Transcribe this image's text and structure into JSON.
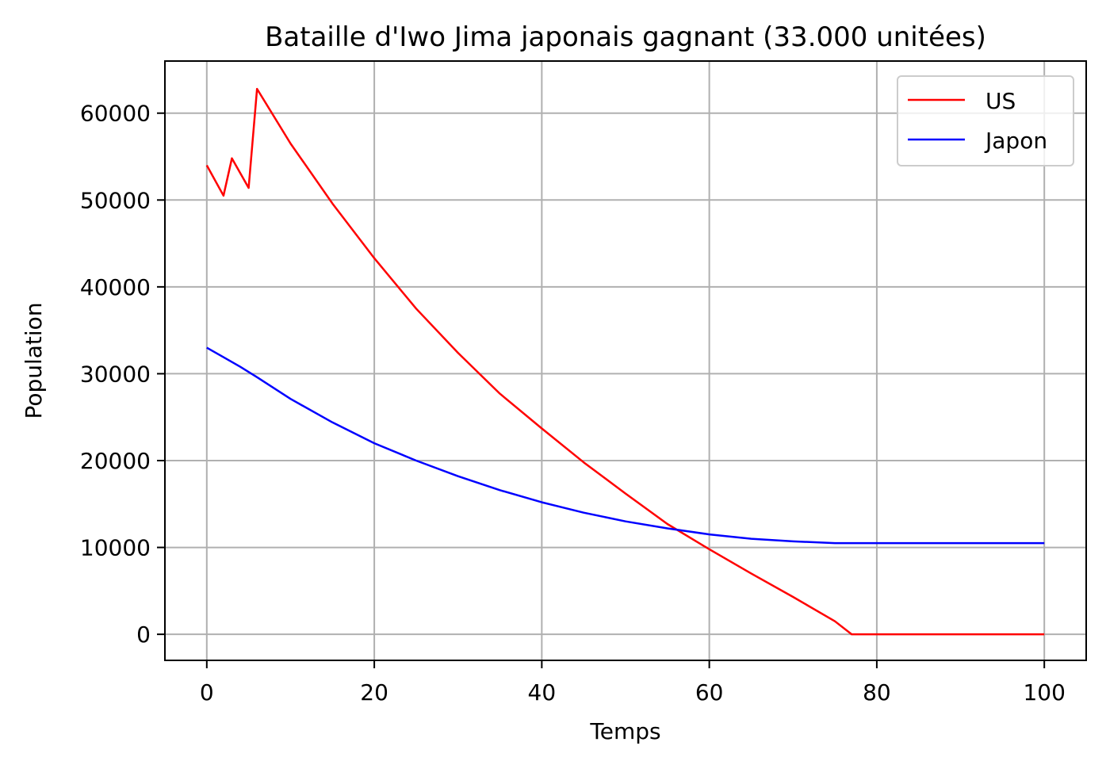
{
  "chart_data": {
    "type": "line",
    "title": "Bataille d'Iwo Jima japonais gagnant (33.000 unitées)",
    "xlabel": "Temps",
    "ylabel": "Population",
    "xlim": [
      -5,
      105
    ],
    "ylim": [
      -3000,
      66000
    ],
    "xticks": [
      0,
      20,
      40,
      60,
      80,
      100
    ],
    "yticks": [
      0,
      10000,
      20000,
      30000,
      40000,
      50000,
      60000
    ],
    "xtick_labels": [
      "0",
      "20",
      "40",
      "60",
      "80",
      "100"
    ],
    "ytick_labels": [
      "0",
      "10000",
      "20000",
      "30000",
      "40000",
      "50000",
      "60000"
    ],
    "grid": true,
    "legend_position": "top-right",
    "series": [
      {
        "name": "US",
        "color": "#ff0000",
        "x": [
          0,
          2,
          3,
          5,
          6,
          10,
          15,
          20,
          25,
          30,
          35,
          40,
          45,
          50,
          55,
          60,
          65,
          70,
          75,
          77,
          80,
          85,
          90,
          95,
          100
        ],
        "y": [
          54000,
          50500,
          54800,
          51400,
          62800,
          56500,
          49600,
          43300,
          37500,
          32400,
          27700,
          23700,
          19800,
          16200,
          12700,
          9800,
          7000,
          4300,
          1500,
          0,
          0,
          0,
          0,
          0,
          0
        ]
      },
      {
        "name": "Japon",
        "color": "#0000ff",
        "x": [
          0,
          2,
          4,
          6,
          10,
          15,
          20,
          25,
          30,
          35,
          40,
          45,
          50,
          55,
          60,
          65,
          70,
          75,
          80,
          85,
          90,
          95,
          100
        ],
        "y": [
          33000,
          31900,
          30800,
          29600,
          27100,
          24400,
          22000,
          20000,
          18200,
          16600,
          15200,
          14000,
          13000,
          12200,
          11500,
          11000,
          10700,
          10500,
          10500,
          10500,
          10500,
          10500,
          10500
        ]
      }
    ]
  }
}
